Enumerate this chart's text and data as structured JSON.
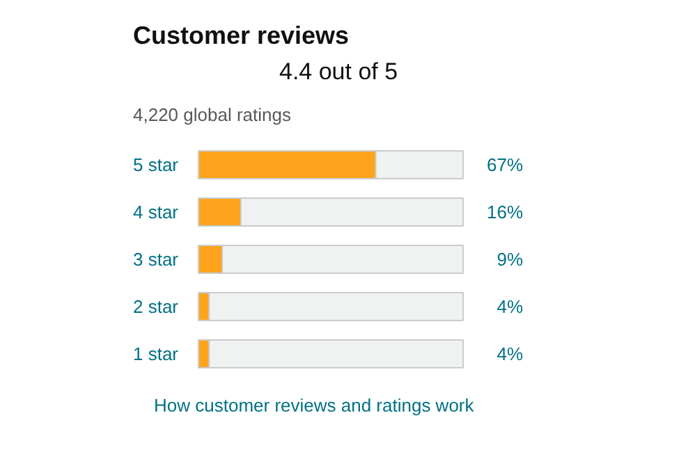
{
  "chart_data": {
    "type": "bar",
    "orientation": "horizontal",
    "title": "Customer reviews",
    "subtitle": "4,220 global ratings",
    "annotations": [
      "4.4 out of 5",
      "How customer reviews and ratings work"
    ],
    "categories": [
      "5 star",
      "4 star",
      "3 star",
      "2 star",
      "1 star"
    ],
    "values": [
      67,
      16,
      9,
      4,
      4
    ],
    "value_labels": [
      "67%",
      "16%",
      "9%",
      "4%",
      "4%"
    ],
    "color": "#ffa41c",
    "xlim": [
      0,
      100
    ],
    "tick_labels": false,
    "grid": false
  }
}
